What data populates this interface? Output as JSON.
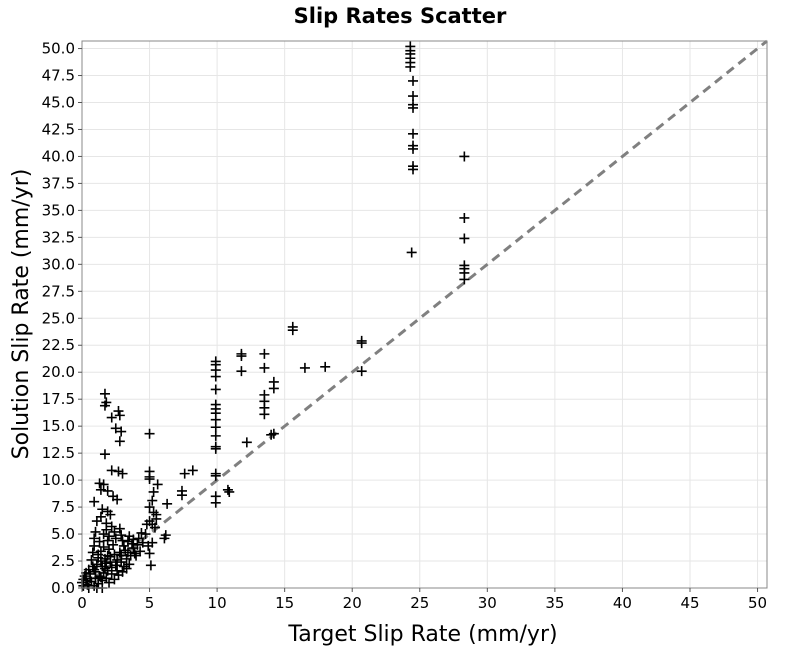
{
  "chart_data": {
    "type": "scatter",
    "title": "Slip Rates Scatter",
    "xlabel": "Target Slip Rate (mm/yr)",
    "ylabel": "Solution Slip Rate (mm/yr)",
    "xlim": [
      0,
      50.7
    ],
    "ylim": [
      0,
      50.7
    ],
    "xticks": [
      0,
      5,
      10,
      15,
      20,
      25,
      30,
      35,
      40,
      45,
      50
    ],
    "yticks": [
      0,
      2.5,
      5,
      7.5,
      10,
      12.5,
      15,
      17.5,
      20,
      22.5,
      25,
      27.5,
      30,
      32.5,
      35,
      37.5,
      40,
      42.5,
      45,
      47.5,
      50
    ],
    "xtick_labels": [
      "0",
      "5",
      "10",
      "15",
      "20",
      "25",
      "30",
      "35",
      "40",
      "45",
      "50"
    ],
    "ytick_labels": [
      "0.0",
      "2.5",
      "5.0",
      "7.5",
      "10.0",
      "12.5",
      "15.0",
      "17.5",
      "20.0",
      "22.5",
      "25.0",
      "27.5",
      "30.0",
      "32.5",
      "35.0",
      "37.5",
      "40.0",
      "42.5",
      "45.0",
      "47.5",
      "50.0"
    ],
    "grid": true,
    "marker": "+",
    "marker_color": "#000000",
    "reference_line": {
      "style": "dashed",
      "color": "#808080",
      "from": [
        0,
        0
      ],
      "to": [
        50.7,
        50.7
      ]
    },
    "series": [
      {
        "points": [
          [
            24.3,
            50.2
          ],
          [
            24.3,
            49.8
          ],
          [
            24.3,
            49.5
          ],
          [
            24.3,
            49.1
          ],
          [
            24.3,
            48.7
          ],
          [
            24.3,
            48.3
          ],
          [
            24.5,
            47.0
          ],
          [
            24.5,
            45.6
          ],
          [
            24.5,
            44.8
          ],
          [
            24.5,
            44.5
          ],
          [
            24.5,
            42.1
          ],
          [
            24.5,
            41.0
          ],
          [
            24.5,
            40.7
          ],
          [
            24.5,
            39.1
          ],
          [
            24.5,
            38.8
          ],
          [
            24.4,
            31.1
          ],
          [
            28.3,
            40.0
          ],
          [
            28.3,
            34.3
          ],
          [
            28.3,
            32.4
          ],
          [
            28.3,
            29.9
          ],
          [
            28.3,
            29.6
          ],
          [
            28.3,
            29.2
          ],
          [
            28.3,
            28.6
          ],
          [
            15.6,
            24.2
          ],
          [
            15.6,
            23.9
          ],
          [
            20.7,
            22.9
          ],
          [
            20.7,
            22.7
          ],
          [
            20.7,
            20.1
          ],
          [
            16.5,
            20.4
          ],
          [
            18.0,
            20.5
          ],
          [
            13.5,
            21.7
          ],
          [
            13.5,
            20.4
          ],
          [
            14.2,
            19.1
          ],
          [
            14.2,
            18.5
          ],
          [
            13.5,
            17.9
          ],
          [
            13.5,
            17.3
          ],
          [
            13.5,
            16.7
          ],
          [
            13.5,
            16.1
          ],
          [
            14.2,
            14.3
          ],
          [
            14.0,
            14.2
          ],
          [
            11.8,
            21.7
          ],
          [
            11.8,
            21.5
          ],
          [
            11.8,
            20.1
          ],
          [
            12.2,
            13.5
          ],
          [
            10.8,
            9.1
          ],
          [
            10.9,
            8.9
          ],
          [
            9.9,
            21.0
          ],
          [
            9.9,
            20.7
          ],
          [
            9.9,
            20.2
          ],
          [
            9.9,
            19.6
          ],
          [
            9.9,
            18.4
          ],
          [
            9.9,
            17.0
          ],
          [
            9.9,
            16.6
          ],
          [
            9.9,
            16.2
          ],
          [
            9.9,
            15.6
          ],
          [
            9.9,
            14.9
          ],
          [
            9.9,
            14.1
          ],
          [
            9.9,
            13.1
          ],
          [
            9.9,
            12.9
          ],
          [
            9.9,
            10.6
          ],
          [
            9.9,
            10.4
          ],
          [
            9.9,
            8.5
          ],
          [
            9.9,
            7.9
          ],
          [
            8.2,
            10.9
          ],
          [
            7.6,
            10.6
          ],
          [
            7.4,
            9.0
          ],
          [
            7.4,
            8.6
          ],
          [
            6.3,
            7.8
          ],
          [
            5.5,
            6.8
          ],
          [
            6.2,
            4.9
          ],
          [
            6.1,
            4.6
          ],
          [
            5.0,
            14.3
          ],
          [
            5.0,
            10.8
          ],
          [
            5.0,
            10.3
          ],
          [
            5.0,
            10.1
          ],
          [
            5.6,
            9.6
          ],
          [
            5.3,
            8.9
          ],
          [
            5.2,
            8.1
          ],
          [
            5.0,
            7.5
          ],
          [
            5.3,
            7.0
          ],
          [
            5.5,
            6.4
          ],
          [
            5.0,
            6.2
          ],
          [
            5.2,
            5.9
          ],
          [
            5.4,
            5.6
          ],
          [
            4.8,
            5.9
          ],
          [
            4.7,
            5.0
          ],
          [
            5.2,
            4.2
          ],
          [
            4.9,
            3.9
          ],
          [
            5.0,
            3.2
          ],
          [
            5.1,
            2.1
          ],
          [
            1.7,
            18.0
          ],
          [
            1.8,
            17.2
          ],
          [
            1.7,
            16.9
          ],
          [
            2.2,
            15.8
          ],
          [
            2.7,
            16.4
          ],
          [
            2.8,
            16.0
          ],
          [
            2.5,
            14.8
          ],
          [
            2.9,
            14.5
          ],
          [
            2.8,
            13.6
          ],
          [
            1.7,
            12.4
          ],
          [
            2.2,
            10.9
          ],
          [
            2.7,
            10.8
          ],
          [
            3.0,
            10.6
          ],
          [
            1.3,
            9.7
          ],
          [
            1.6,
            9.6
          ],
          [
            1.4,
            9.1
          ],
          [
            1.9,
            9.0
          ],
          [
            2.3,
            8.5
          ],
          [
            2.6,
            8.2
          ],
          [
            0.9,
            8.0
          ],
          [
            1.5,
            7.3
          ],
          [
            1.9,
            7.1
          ],
          [
            2.1,
            6.8
          ],
          [
            1.4,
            6.6
          ],
          [
            1.1,
            6.2
          ],
          [
            1.8,
            6.0
          ],
          [
            2.2,
            5.7
          ],
          [
            2.8,
            5.5
          ],
          [
            1.0,
            5.2
          ],
          [
            1.6,
            5.0
          ],
          [
            2.0,
            4.8
          ],
          [
            2.5,
            4.6
          ],
          [
            3.0,
            4.4
          ],
          [
            3.4,
            4.3
          ],
          [
            3.7,
            4.1
          ],
          [
            4.2,
            4.6
          ],
          [
            4.1,
            4.0
          ],
          [
            3.8,
            3.7
          ],
          [
            3.2,
            3.5
          ],
          [
            2.8,
            3.3
          ],
          [
            2.4,
            3.1
          ],
          [
            2.1,
            2.9
          ],
          [
            1.7,
            2.7
          ],
          [
            1.4,
            2.5
          ],
          [
            1.1,
            2.2
          ],
          [
            0.8,
            2.0
          ],
          [
            0.5,
            1.7
          ],
          [
            0.3,
            1.4
          ],
          [
            0.2,
            1.1
          ],
          [
            0.1,
            0.8
          ],
          [
            0.0,
            0.5
          ],
          [
            0.1,
            0.2
          ],
          [
            0.4,
            0.3
          ],
          [
            0.7,
            0.6
          ],
          [
            1.0,
            0.9
          ],
          [
            1.3,
            1.1
          ],
          [
            1.6,
            1.4
          ],
          [
            1.9,
            1.6
          ],
          [
            2.2,
            1.9
          ],
          [
            2.5,
            2.1
          ],
          [
            2.9,
            2.4
          ],
          [
            3.3,
            2.7
          ],
          [
            3.6,
            3.0
          ],
          [
            3.9,
            3.2
          ],
          [
            4.3,
            3.4
          ],
          [
            4.5,
            4.2
          ],
          [
            0.5,
            0.0
          ],
          [
            0.9,
            0.2
          ],
          [
            1.2,
            0.4
          ],
          [
            1.5,
            0.7
          ],
          [
            1.8,
            0.9
          ],
          [
            2.0,
            0.5
          ],
          [
            2.4,
            0.8
          ],
          [
            2.7,
            1.2
          ],
          [
            3.0,
            1.5
          ],
          [
            3.3,
            1.8
          ],
          [
            3.5,
            2.2
          ],
          [
            1.5,
            0.0
          ],
          [
            1.1,
            0.0
          ],
          [
            0.3,
            0.7
          ],
          [
            0.6,
            1.3
          ],
          [
            0.9,
            1.7
          ],
          [
            1.2,
            3.1
          ],
          [
            1.6,
            3.8
          ],
          [
            1.3,
            4.3
          ],
          [
            0.9,
            4.6
          ],
          [
            2.6,
            2.6
          ],
          [
            3.1,
            3.9
          ],
          [
            2.3,
            4.0
          ],
          [
            1.9,
            4.4
          ],
          [
            1.4,
            3.4
          ],
          [
            0.7,
            2.6
          ],
          [
            2.0,
            3.6
          ],
          [
            2.9,
            4.9
          ],
          [
            3.8,
            4.5
          ],
          [
            4.0,
            3.0
          ],
          [
            1.7,
            1.8
          ],
          [
            1.8,
            2.3
          ],
          [
            1.5,
            2.0
          ],
          [
            2.1,
            2.4
          ],
          [
            2.2,
            1.3
          ],
          [
            1.0,
            1.5
          ],
          [
            0.6,
            0.9
          ],
          [
            1.4,
            1.0
          ],
          [
            2.6,
            1.6
          ],
          [
            3.1,
            2.0
          ],
          [
            2.9,
            3.0
          ],
          [
            3.4,
            3.3
          ],
          [
            1.9,
            3.0
          ],
          [
            1.2,
            2.8
          ],
          [
            0.8,
            3.3
          ],
          [
            2.4,
            5.2
          ],
          [
            1.8,
            5.4
          ],
          [
            0.9,
            3.9
          ],
          [
            3.5,
            4.8
          ],
          [
            4.4,
            5.1
          ]
        ]
      }
    ]
  }
}
